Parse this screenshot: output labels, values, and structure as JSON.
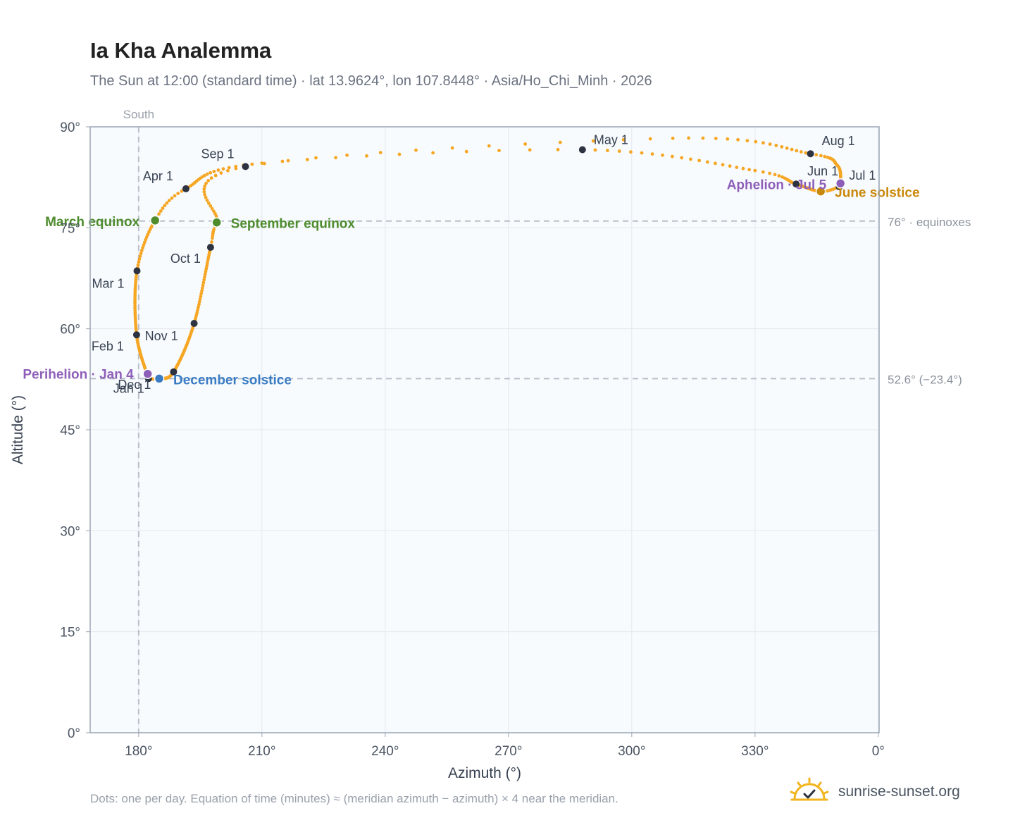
{
  "header": {
    "title": "Ia Kha Analemma",
    "subtitle": "The Sun at 12:00 (standard time) · lat 13.9624°, lon 107.8448° · Asia/Ho_Chi_Minh · 2026"
  },
  "footer": {
    "note": "Dots: one per day. Equation of time (minutes) ≈ (meridian azimuth − azimuth) × 4 near the meridian.",
    "brand": "sunrise-sunset.org",
    "brand_icon": "sun-logo-icon"
  },
  "colors": {
    "curve": "#f5a623",
    "month_dot": "#2d3340",
    "equinox": "#4e8c2e",
    "june_solstice": "#c9880a",
    "december_solstice": "#3a7cc4",
    "apsis": "#8e5fb8",
    "plot_bg": "#f8fbfe",
    "grid": "#e3e8ef",
    "axis": "#9aa5b4",
    "reference": "#b9c0ca"
  },
  "chart_data": {
    "type": "scatter",
    "title": "Ia Kha Analemma",
    "xlabel": "Azimuth (°)",
    "ylabel": "Altitude (°)",
    "xlim": [
      168.2,
      0.2
    ],
    "ylim": [
      0,
      90
    ],
    "x_ticks": [
      180,
      210,
      240,
      270,
      300,
      330,
      0
    ],
    "x_tick_labels": [
      "180°",
      "210°",
      "240°",
      "270°",
      "300°",
      "330°",
      "0°"
    ],
    "y_ticks": [
      0,
      15,
      30,
      45,
      60,
      75,
      90
    ],
    "y_tick_labels": [
      "0°",
      "15°",
      "30°",
      "45°",
      "60°",
      "75°",
      "90°"
    ],
    "grid": true,
    "meridian": {
      "azimuth": 180,
      "label": "South"
    },
    "reference_lines": [
      {
        "altitude": 76.0,
        "label": "76° · equinoxes"
      },
      {
        "altitude": 52.6,
        "label": "52.6° (−23.4°)"
      }
    ],
    "path_keypoints": [
      {
        "doy": 1,
        "az": 182.4,
        "alt": 52.6
      },
      {
        "doy": 32,
        "az": 179.5,
        "alt": 59.1
      },
      {
        "doy": 60,
        "az": 179.6,
        "alt": 68.6
      },
      {
        "doy": 79,
        "az": 184.0,
        "alt": 76.1
      },
      {
        "doy": 91,
        "az": 191.5,
        "alt": 80.8
      },
      {
        "doy": 110,
        "az": 210.0,
        "alt": 84.6
      },
      {
        "doy": 121,
        "az": 288.0,
        "alt": 86.6
      },
      {
        "doy": 140,
        "az": 330.0,
        "alt": 83.5
      },
      {
        "doy": 152,
        "az": 340.0,
        "alt": 81.5
      },
      {
        "doy": 172,
        "az": 346.0,
        "alt": 80.4
      },
      {
        "doy": 182,
        "az": 350.5,
        "alt": 81.1
      },
      {
        "doy": 186,
        "az": 350.8,
        "alt": 81.6
      },
      {
        "doy": 200,
        "az": 350.0,
        "alt": 84.3
      },
      {
        "doy": 213,
        "az": 343.5,
        "alt": 86.0
      },
      {
        "doy": 230,
        "az": 310.0,
        "alt": 88.3
      },
      {
        "doy": 244,
        "az": 206.0,
        "alt": 84.1
      },
      {
        "doy": 266,
        "az": 199.0,
        "alt": 75.8
      },
      {
        "doy": 274,
        "az": 197.5,
        "alt": 72.1
      },
      {
        "doy": 305,
        "az": 193.5,
        "alt": 60.8
      },
      {
        "doy": 335,
        "az": 188.5,
        "alt": 53.6
      },
      {
        "doy": 355,
        "az": 185.0,
        "alt": 52.6
      },
      {
        "doy": 366,
        "az": 182.4,
        "alt": 52.6
      }
    ],
    "month_points": [
      {
        "label": "Jan 1",
        "az": 182.4,
        "alt": 52.6
      },
      {
        "label": "Feb 1",
        "az": 179.5,
        "alt": 59.1
      },
      {
        "label": "Mar 1",
        "az": 179.6,
        "alt": 68.6
      },
      {
        "label": "Apr 1",
        "az": 191.5,
        "alt": 80.8
      },
      {
        "label": "May 1",
        "az": 288.0,
        "alt": 86.6
      },
      {
        "label": "Jun 1",
        "az": 340.0,
        "alt": 81.5
      },
      {
        "label": "Jul 1",
        "az": 350.5,
        "alt": 81.1
      },
      {
        "label": "Aug 1",
        "az": 343.5,
        "alt": 86.0
      },
      {
        "label": "Sep 1",
        "az": 206.0,
        "alt": 84.1
      },
      {
        "label": "Oct 1",
        "az": 197.5,
        "alt": 72.1
      },
      {
        "label": "Nov 1",
        "az": 193.5,
        "alt": 60.8
      },
      {
        "label": "Dec 1",
        "az": 188.5,
        "alt": 53.6
      }
    ],
    "events": [
      {
        "label": "March equinox",
        "az": 184.0,
        "alt": 76.1,
        "color_key": "equinox"
      },
      {
        "label": "September equinox",
        "az": 199.0,
        "alt": 75.8,
        "color_key": "equinox"
      },
      {
        "label": "June solstice",
        "az": 346.0,
        "alt": 80.4,
        "color_key": "june_solstice"
      },
      {
        "label": "December solstice",
        "az": 185.0,
        "alt": 52.6,
        "color_key": "december_solstice"
      },
      {
        "label": "Perihelion · Jan 4",
        "az": 182.2,
        "alt": 53.3,
        "color_key": "apsis"
      },
      {
        "label": "Aphelion · Jul 5",
        "az": 350.8,
        "alt": 81.6,
        "color_key": "apsis"
      }
    ]
  }
}
